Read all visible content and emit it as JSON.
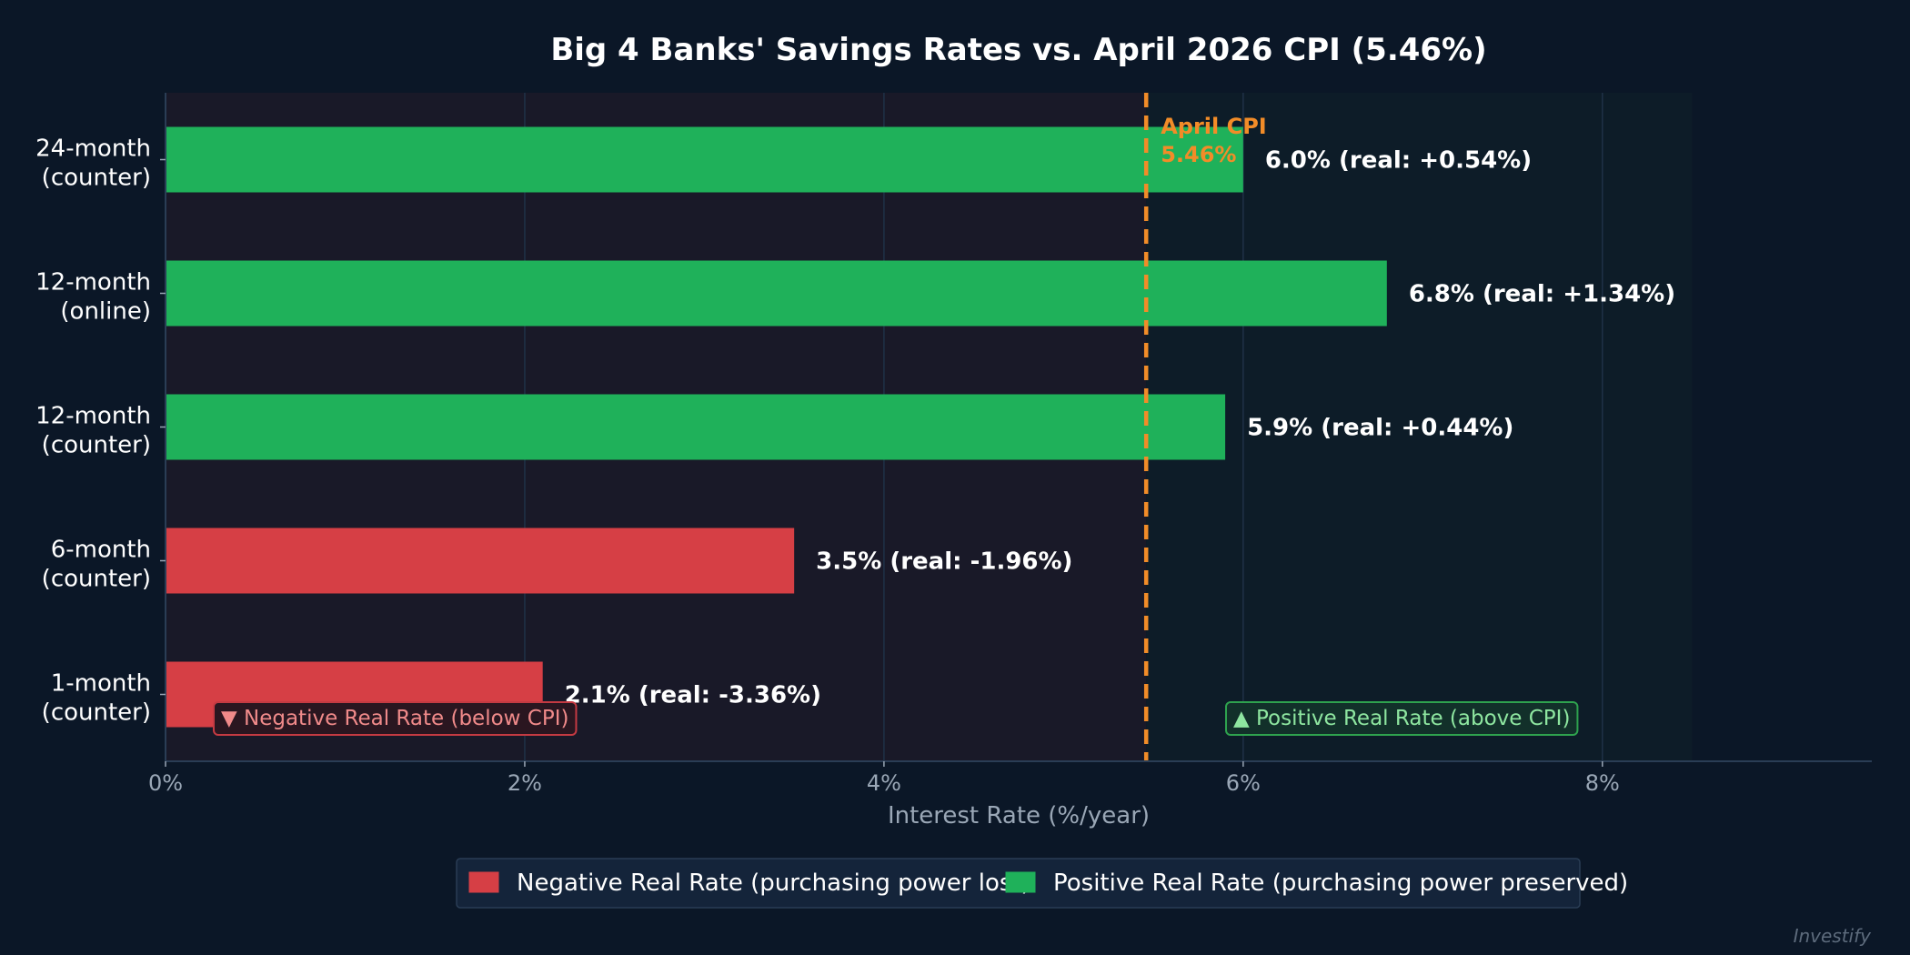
{
  "chart_data": {
    "type": "bar",
    "orientation": "horizontal",
    "title": "Big 4 Banks' Savings Rates vs. April 2026 CPI (5.46%)",
    "xlabel": "Interest Rate (%/year)",
    "ylabel": "",
    "xlim": [
      0,
      9.5
    ],
    "xticks": [
      {
        "value": 0,
        "label": "0%"
      },
      {
        "value": 2,
        "label": "2%"
      },
      {
        "value": 4,
        "label": "4%"
      },
      {
        "value": 6,
        "label": "6%"
      },
      {
        "value": 8,
        "label": "8%"
      }
    ],
    "grid": true,
    "categories": [
      [
        "24-month",
        "(counter)"
      ],
      [
        "12-month",
        "(online)"
      ],
      [
        "12-month",
        "(counter)"
      ],
      [
        "6-month",
        "(counter)"
      ],
      [
        "1-month",
        "(counter)"
      ]
    ],
    "values": [
      6.0,
      6.8,
      5.9,
      3.5,
      2.1
    ],
    "real_rates": [
      0.54,
      1.34,
      0.44,
      -1.96,
      -3.36
    ],
    "bar_labels": [
      "6.0%  (real: +0.54%)",
      "6.8%  (real: +1.34%)",
      "5.9%  (real: +0.44%)",
      "3.5%  (real: -1.96%)",
      "2.1%  (real: -3.36%)"
    ],
    "reference_line": {
      "value": 5.46,
      "label_line1": "April CPI",
      "label_line2": "5.46%",
      "color": "#f28c28",
      "style": "dashed"
    },
    "positive_zone_end": 8.5,
    "zone_labels": {
      "negative": "▼ Negative Real Rate (below CPI)",
      "positive": "▲ Positive Real Rate (above CPI)"
    },
    "legend": {
      "placement": "bottom-center",
      "entries": [
        {
          "label": "Negative Real Rate (purchasing power lost)",
          "color": "#d63f45"
        },
        {
          "label": "Positive Real Rate (purchasing power preserved)",
          "color": "#1fb15a"
        }
      ]
    },
    "colors": {
      "negative": "#d63f45",
      "positive": "#1fb15a",
      "background": "#0b1727",
      "plot_negative_bg": "#191928",
      "plot_positive_bg": "#0d1c28"
    },
    "watermark": "Investify"
  }
}
